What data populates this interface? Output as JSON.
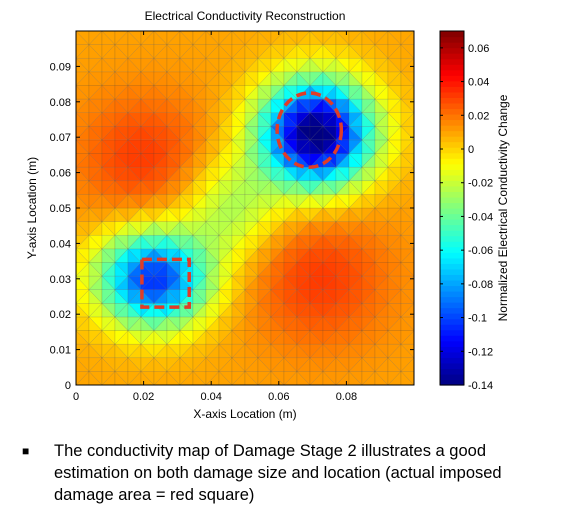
{
  "chart_data": {
    "type": "heatmap",
    "title": "Electrical Conductivity Reconstruction",
    "xlabel": "X-axis Location (m)",
    "ylabel": "Y-axis Location (m)",
    "colorbar_label": "Normalized Electrical Conductivity Change",
    "xlim": [
      0,
      0.1
    ],
    "ylim": [
      0,
      0.1
    ],
    "xticks": [
      0,
      0.02,
      0.04,
      0.06,
      0.08
    ],
    "xtick_labels": [
      "0",
      "0.02",
      "0.04",
      "0.06",
      "0.08"
    ],
    "yticks": [
      0,
      0.01,
      0.02,
      0.03,
      0.04,
      0.05,
      0.06,
      0.07,
      0.08,
      0.09
    ],
    "ytick_labels": [
      "0",
      "0.01",
      "0.02",
      "0.03",
      "0.04",
      "0.05",
      "0.06",
      "0.07",
      "0.08",
      "0.09"
    ],
    "clim": [
      -0.14,
      0.07
    ],
    "cticks": [
      -0.14,
      -0.12,
      -0.1,
      -0.08,
      -0.06,
      -0.04,
      -0.02,
      0,
      0.02,
      0.04,
      0.06
    ],
    "ctick_labels": [
      "-0.14",
      "-0.12",
      "-0.1",
      "-0.08",
      "-0.06",
      "-0.04",
      "-0.02",
      "0",
      "0.02",
      "0.04",
      "0.06"
    ],
    "colormap": "jet",
    "background_value": 0.01,
    "features": [
      {
        "kind": "damage",
        "center": [
          0.023,
          0.03
        ],
        "sigma": [
          0.0115,
          0.0095
        ],
        "amplitude": -0.115
      },
      {
        "kind": "damage",
        "center": [
          0.071,
          0.071
        ],
        "sigma": [
          0.0115,
          0.0105
        ],
        "amplitude": -0.155
      },
      {
        "kind": "bridge",
        "center": [
          0.046,
          0.05
        ],
        "sigma": [
          0.01,
          0.01
        ],
        "amplitude": -0.035
      },
      {
        "kind": "high",
        "center": [
          0.02,
          0.064
        ],
        "sigma": [
          0.014,
          0.013
        ],
        "amplitude": 0.022
      },
      {
        "kind": "high",
        "center": [
          0.072,
          0.03
        ],
        "sigma": [
          0.015,
          0.014
        ],
        "amplitude": 0.022
      }
    ],
    "annotations": [
      {
        "shape": "square",
        "label": "actual imposed damage area",
        "x_range": [
          0.0195,
          0.0335
        ],
        "y_range": [
          0.022,
          0.0355
        ],
        "color": "#e03c28"
      },
      {
        "shape": "circle",
        "label": "actual imposed damage area",
        "center": [
          0.069,
          0.072
        ],
        "radius_x": 0.0095,
        "radius_y": 0.0105,
        "color": "#e03c28"
      }
    ]
  },
  "caption": {
    "bullet": "■",
    "text": "The conductivity map of  Damage Stage 2 illustrates a good estimation on both damage size and location (actual imposed damage area = red square)"
  }
}
